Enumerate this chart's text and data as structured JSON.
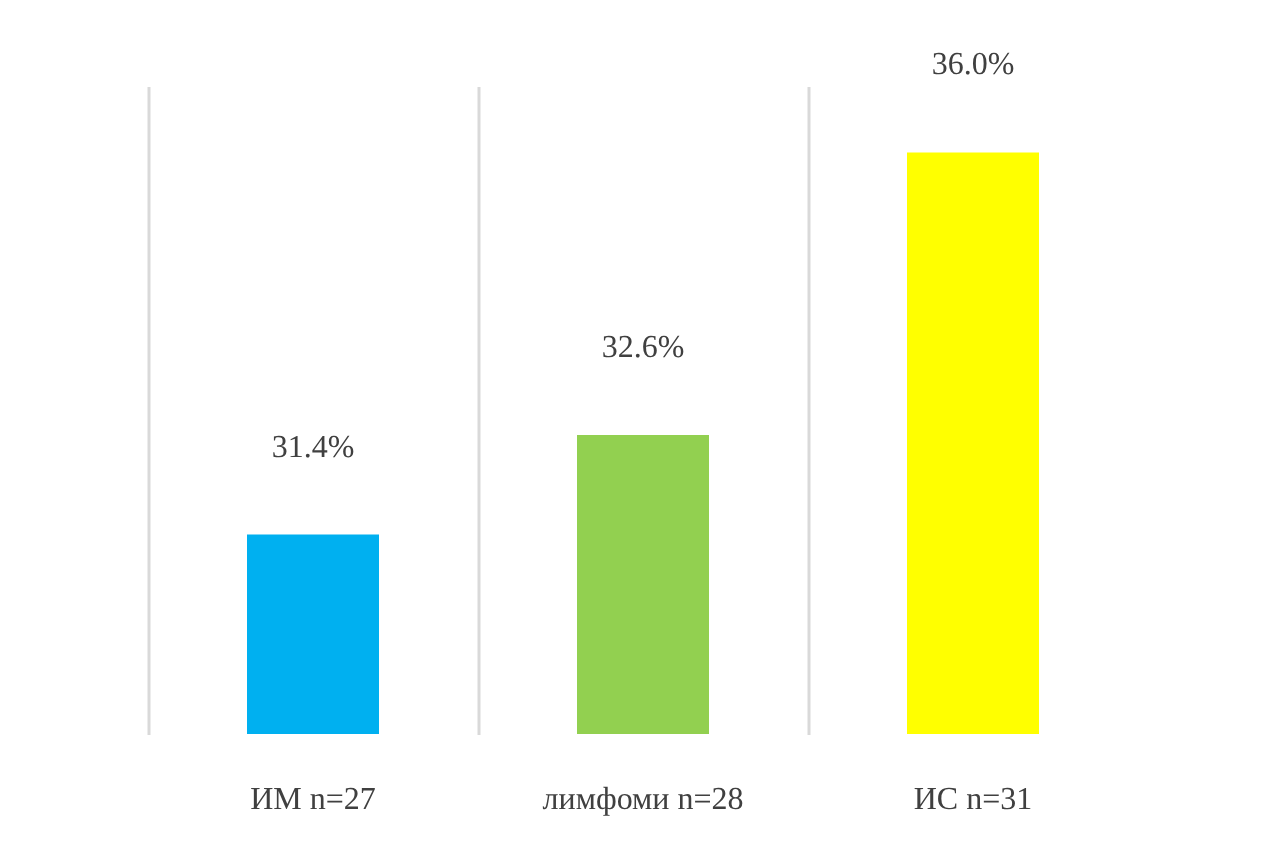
{
  "chart_data": {
    "type": "bar",
    "categories": [
      "ИМ n=27",
      "лимфоми n=28",
      "ИС n=31"
    ],
    "values": [
      31.4,
      32.6,
      36.0
    ],
    "colors": [
      "#00b0f0",
      "#92d050",
      "#ffff00"
    ],
    "value_labels": [
      "31.4%",
      "32.6%",
      "36.0%"
    ],
    "ylim": [
      29,
      36.8
    ],
    "tick_labels": "x",
    "grid": "x"
  }
}
